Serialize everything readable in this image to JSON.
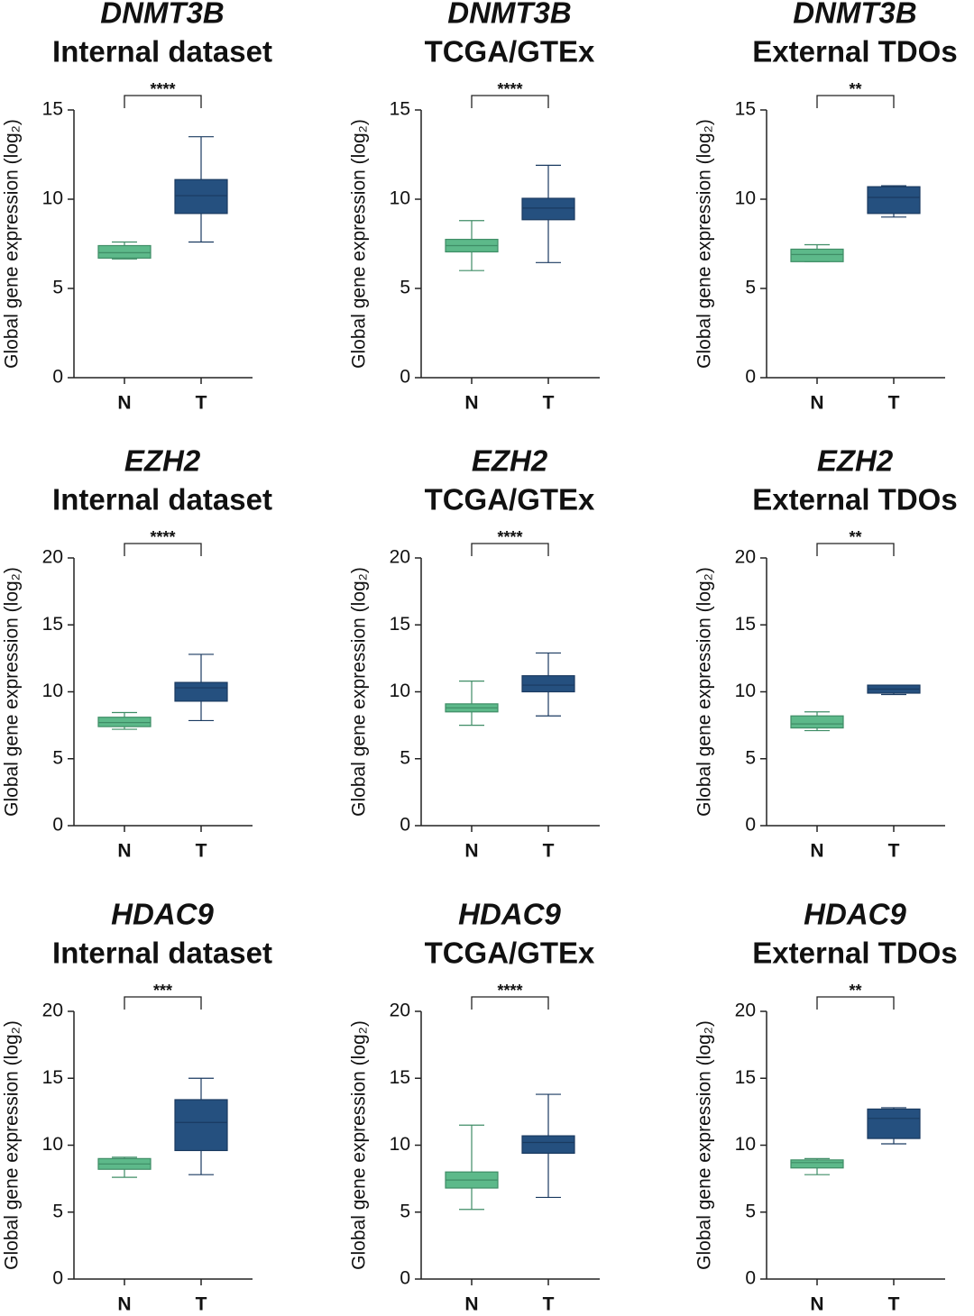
{
  "chart_data": [
    {
      "type": "box",
      "title": "DNMT3B",
      "subtitle": "Internal dataset",
      "ylabel": "Global gene expression (log₂)",
      "significance": "****",
      "categories": [
        "N",
        "T"
      ],
      "ylim": [
        0,
        15
      ],
      "yticks": [
        0,
        5,
        10,
        15
      ],
      "boxes": [
        {
          "color": "#5db98a",
          "min": 6.65,
          "q1": 6.7,
          "median": 7.0,
          "q3": 7.4,
          "max": 7.6
        },
        {
          "color": "#25507f",
          "min": 7.6,
          "q1": 9.2,
          "median": 10.2,
          "q3": 11.1,
          "max": 13.5
        }
      ]
    },
    {
      "type": "box",
      "title": "DNMT3B",
      "subtitle": "TCGA/GTEx",
      "ylabel": "Global gene expression (log₂)",
      "significance": "****",
      "categories": [
        "N",
        "T"
      ],
      "ylim": [
        0,
        15
      ],
      "yticks": [
        0,
        5,
        10,
        15
      ],
      "boxes": [
        {
          "color": "#5db98a",
          "min": 6.0,
          "q1": 7.05,
          "median": 7.4,
          "q3": 7.75,
          "max": 8.8
        },
        {
          "color": "#25507f",
          "min": 6.45,
          "q1": 8.85,
          "median": 9.5,
          "q3": 10.05,
          "max": 11.9
        }
      ]
    },
    {
      "type": "box",
      "title": "DNMT3B",
      "subtitle": "External TDOs",
      "ylabel": "Global gene expression (log₂)",
      "significance": "**",
      "categories": [
        "N",
        "T"
      ],
      "ylim": [
        0,
        15
      ],
      "yticks": [
        0,
        5,
        10,
        15
      ],
      "boxes": [
        {
          "color": "#5db98a",
          "min": 6.5,
          "q1": 6.5,
          "median": 6.9,
          "q3": 7.2,
          "max": 7.45
        },
        {
          "color": "#25507f",
          "min": 9.0,
          "q1": 9.2,
          "median": 10.1,
          "q3": 10.7,
          "max": 10.75
        }
      ]
    },
    {
      "type": "box",
      "title": "EZH2",
      "subtitle": "Internal dataset",
      "ylabel": "Global gene expression (log₂)",
      "significance": "****",
      "categories": [
        "N",
        "T"
      ],
      "ylim": [
        0,
        20
      ],
      "yticks": [
        0,
        5,
        10,
        15,
        20
      ],
      "boxes": [
        {
          "color": "#5db98a",
          "min": 7.2,
          "q1": 7.4,
          "median": 7.7,
          "q3": 8.1,
          "max": 8.45
        },
        {
          "color": "#25507f",
          "min": 7.85,
          "q1": 9.3,
          "median": 10.3,
          "q3": 10.7,
          "max": 12.8
        }
      ]
    },
    {
      "type": "box",
      "title": "EZH2",
      "subtitle": "TCGA/GTEx",
      "ylabel": "Global gene expression (log₂)",
      "significance": "****",
      "categories": [
        "N",
        "T"
      ],
      "ylim": [
        0,
        20
      ],
      "yticks": [
        0,
        5,
        10,
        15,
        20
      ],
      "boxes": [
        {
          "color": "#5db98a",
          "min": 7.5,
          "q1": 8.5,
          "median": 8.8,
          "q3": 9.1,
          "max": 10.8
        },
        {
          "color": "#25507f",
          "min": 8.2,
          "q1": 10.0,
          "median": 10.5,
          "q3": 11.2,
          "max": 12.9
        }
      ]
    },
    {
      "type": "box",
      "title": "EZH2",
      "subtitle": "External TDOs",
      "ylabel": "Global gene expression (log₂)",
      "significance": "**",
      "categories": [
        "N",
        "T"
      ],
      "ylim": [
        0,
        20
      ],
      "yticks": [
        0,
        5,
        10,
        15,
        20
      ],
      "boxes": [
        {
          "color": "#5db98a",
          "min": 7.1,
          "q1": 7.3,
          "median": 7.6,
          "q3": 8.2,
          "max": 8.5
        },
        {
          "color": "#25507f",
          "min": 9.8,
          "q1": 9.9,
          "median": 10.2,
          "q3": 10.5,
          "max": 10.5
        }
      ]
    },
    {
      "type": "box",
      "title": "HDAC9",
      "subtitle": "Internal dataset",
      "ylabel": "Global gene expression (log₂)",
      "significance": "***",
      "categories": [
        "N",
        "T"
      ],
      "ylim": [
        0,
        20
      ],
      "yticks": [
        0,
        5,
        10,
        15,
        20
      ],
      "boxes": [
        {
          "color": "#5db98a",
          "min": 7.6,
          "q1": 8.2,
          "median": 8.6,
          "q3": 9.0,
          "max": 9.1
        },
        {
          "color": "#25507f",
          "min": 7.8,
          "q1": 9.6,
          "median": 11.7,
          "q3": 13.4,
          "max": 15.0
        }
      ]
    },
    {
      "type": "box",
      "title": "HDAC9",
      "subtitle": "TCGA/GTEx",
      "ylabel": "Global gene expression (log₂)",
      "significance": "****",
      "categories": [
        "N",
        "T"
      ],
      "ylim": [
        0,
        20
      ],
      "yticks": [
        0,
        5,
        10,
        15,
        20
      ],
      "boxes": [
        {
          "color": "#5db98a",
          "min": 5.2,
          "q1": 6.8,
          "median": 7.4,
          "q3": 8.0,
          "max": 11.5
        },
        {
          "color": "#25507f",
          "min": 6.1,
          "q1": 9.4,
          "median": 10.2,
          "q3": 10.7,
          "max": 13.8
        }
      ]
    },
    {
      "type": "box",
      "title": "HDAC9",
      "subtitle": "External TDOs",
      "ylabel": "Global gene expression (log₂)",
      "significance": "**",
      "categories": [
        "N",
        "T"
      ],
      "ylim": [
        0,
        20
      ],
      "yticks": [
        0,
        5,
        10,
        15,
        20
      ],
      "boxes": [
        {
          "color": "#5db98a",
          "min": 7.8,
          "q1": 8.3,
          "median": 8.7,
          "q3": 8.9,
          "max": 9.0
        },
        {
          "color": "#25507f",
          "min": 10.1,
          "q1": 10.5,
          "median": 12.0,
          "q3": 12.7,
          "max": 12.8
        }
      ]
    }
  ]
}
